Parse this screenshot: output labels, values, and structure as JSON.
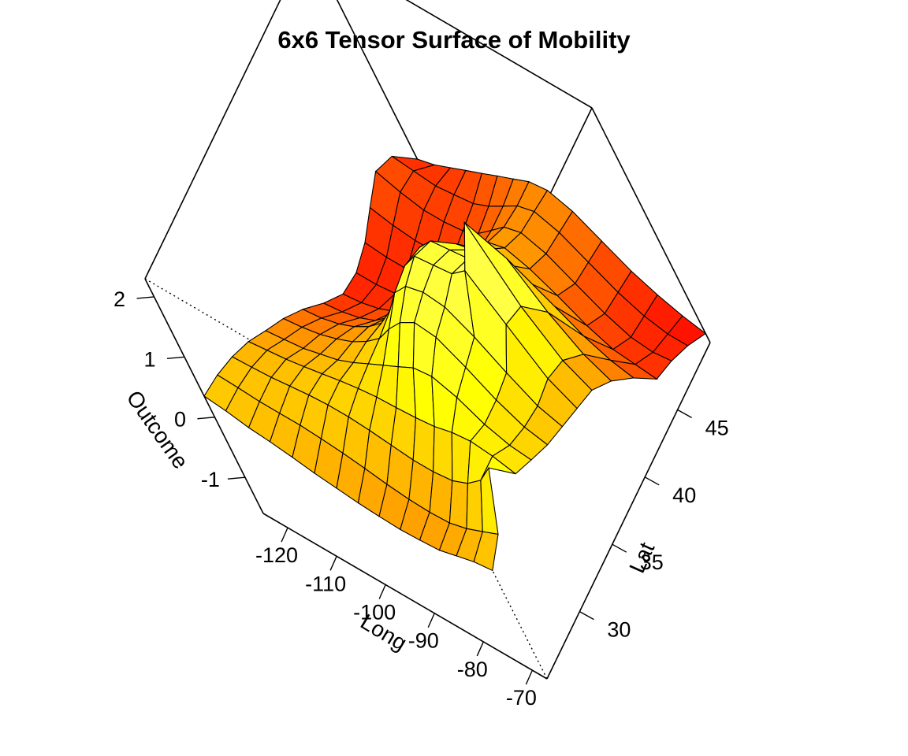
{
  "chart_data": {
    "type": "surface3d",
    "title": "6x6 Tensor Surface of Mobility",
    "xlabel": "Long",
    "ylabel": "Lat",
    "zlabel": "Outcome",
    "x_ticks": [
      -120,
      -110,
      -100,
      -90,
      -80,
      -70
    ],
    "y_ticks": [
      30,
      35,
      40,
      45
    ],
    "z_ticks": [
      -1,
      0,
      1,
      2
    ],
    "xlim": [
      -125,
      -67
    ],
    "ylim": [
      25,
      50
    ],
    "zlim": [
      -1.6,
      2.3
    ],
    "colormap": "heat",
    "colors": {
      "low": "#ff0000",
      "mid": "#ff8000",
      "high": "#ffff80"
    },
    "surface": {
      "x": [
        -125,
        -120.9,
        -116.7,
        -112.6,
        -108.4,
        -104.3,
        -100.1,
        -96,
        -91.9,
        -87.7,
        -83.6,
        -79.4,
        -75.3,
        -71.1,
        -67
      ],
      "y": [
        25,
        26.8,
        28.6,
        30.4,
        32.1,
        33.9,
        35.7,
        37.5,
        39.3,
        41.1,
        42.9,
        44.6,
        46.4,
        48.2,
        50
      ],
      "z": [
        [
          0.35,
          0.3,
          0.22,
          0.18,
          0.12,
          0.05,
          0.0,
          -0.05,
          -0.08,
          -0.1,
          -0.08,
          -0.05,
          0.05,
          0.15,
          0.2
        ],
        [
          0.3,
          0.28,
          0.25,
          0.25,
          0.25,
          0.22,
          0.18,
          0.12,
          0.05,
          0.0,
          -0.02,
          0.0,
          0.1,
          0.25,
          0.4
        ],
        [
          0.2,
          0.22,
          0.25,
          0.3,
          0.35,
          0.38,
          0.38,
          0.35,
          0.3,
          0.25,
          0.25,
          0.3,
          0.45,
          0.7,
          1.1
        ],
        [
          0.05,
          0.1,
          0.15,
          0.22,
          0.3,
          0.38,
          0.45,
          0.5,
          0.52,
          0.55,
          0.6,
          0.7,
          0.75,
          0.7,
          0.6
        ],
        [
          -0.15,
          -0.1,
          -0.05,
          0.05,
          0.15,
          0.3,
          0.48,
          0.65,
          0.82,
          1.0,
          1.05,
          0.9,
          0.65,
          0.5,
          0.45
        ],
        [
          -0.35,
          -0.3,
          -0.22,
          -0.1,
          0.05,
          0.25,
          0.5,
          0.85,
          1.15,
          1.35,
          1.3,
          1.0,
          0.65,
          0.4,
          0.3
        ],
        [
          -0.6,
          -0.55,
          -0.45,
          -0.3,
          -0.1,
          0.15,
          0.55,
          1.05,
          1.35,
          1.45,
          1.4,
          1.1,
          0.7,
          0.35,
          0.2
        ],
        [
          -0.9,
          -0.85,
          -0.75,
          -0.6,
          -0.35,
          -0.05,
          0.45,
          1.1,
          1.45,
          1.5,
          1.55,
          1.8,
          1.1,
          0.4,
          0.1
        ],
        [
          -1.15,
          -1.1,
          -1.0,
          -0.85,
          -0.6,
          -0.25,
          0.35,
          1.0,
          1.3,
          1.35,
          1.4,
          2.2,
          1.0,
          0.3,
          0.0
        ],
        [
          -1.2,
          -1.2,
          -1.15,
          -1.05,
          -0.85,
          -0.5,
          0.0,
          0.55,
          0.85,
          0.95,
          0.95,
          1.2,
          0.5,
          0.0,
          -0.25
        ],
        [
          -1.1,
          -1.15,
          -1.15,
          -1.1,
          -0.95,
          -0.7,
          -0.3,
          0.15,
          0.35,
          0.3,
          0.2,
          0.0,
          -0.3,
          -0.5,
          -0.6
        ],
        [
          -0.9,
          -1.0,
          -1.05,
          -1.05,
          -0.95,
          -0.75,
          -0.45,
          -0.1,
          0.0,
          -0.15,
          -0.4,
          -0.7,
          -0.9,
          -0.95,
          -1.0
        ],
        [
          -0.7,
          -0.85,
          -0.95,
          -0.95,
          -0.9,
          -0.75,
          -0.5,
          -0.25,
          -0.15,
          -0.3,
          -0.6,
          -0.9,
          -1.1,
          -1.15,
          -1.1
        ],
        [
          -0.85,
          -0.9,
          -0.95,
          -0.9,
          -0.85,
          -0.7,
          -0.5,
          -0.3,
          -0.2,
          -0.35,
          -0.65,
          -0.95,
          -1.15,
          -1.25,
          -1.25
        ],
        [
          -1.3,
          -1.2,
          -1.05,
          -0.9,
          -0.75,
          -0.6,
          -0.45,
          -0.3,
          -0.25,
          -0.4,
          -0.7,
          -1.0,
          -1.2,
          -1.35,
          -1.45
        ]
      ]
    }
  }
}
